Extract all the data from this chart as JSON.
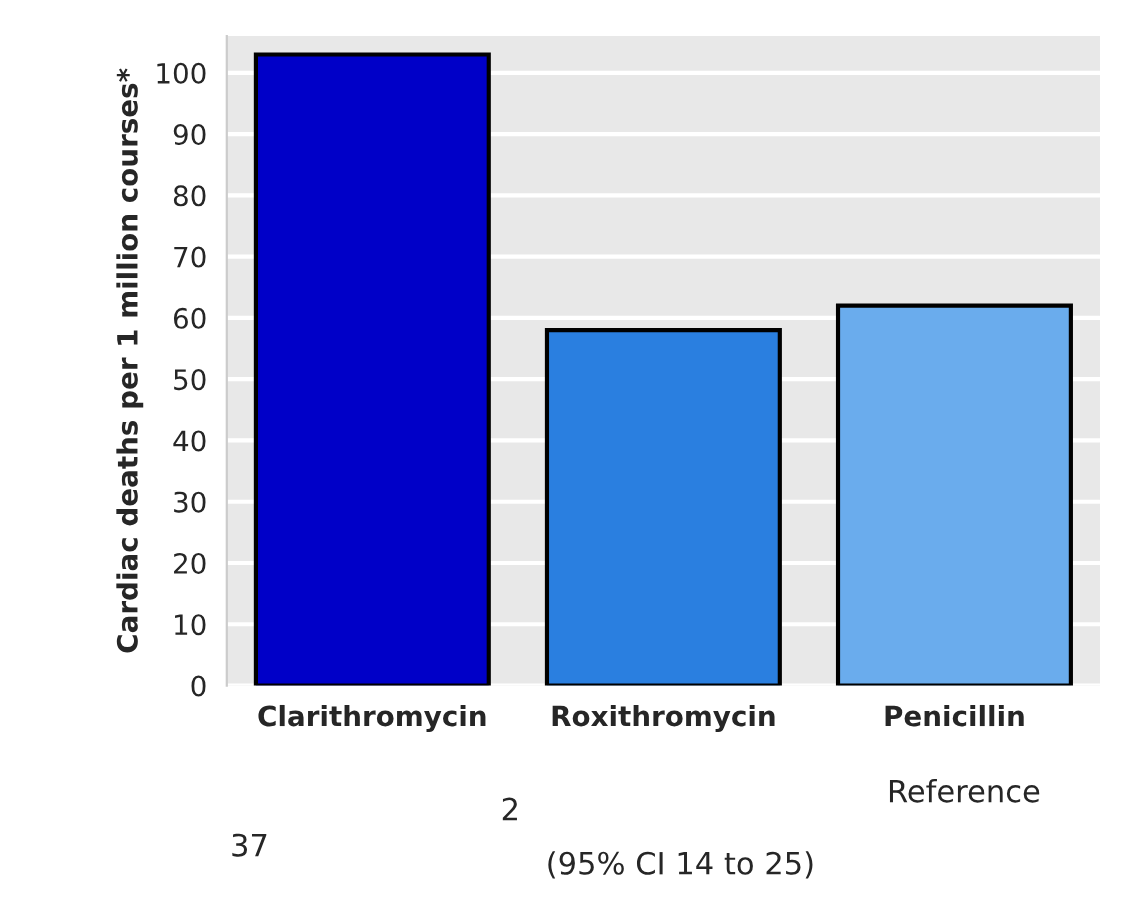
{
  "chart_data": {
    "type": "bar",
    "ylabel": "Cardiac deaths per 1 million courses*",
    "categories": [
      "Clarithromycin",
      "Roxithromycin",
      "Penicillin"
    ],
    "values": [
      103,
      58,
      62
    ],
    "colors": [
      "#0000c8",
      "#2a7fe0",
      "#6aaced"
    ],
    "ylim": [
      0,
      106
    ],
    "yticks": [
      0,
      10,
      20,
      30,
      40,
      50,
      60,
      70,
      80,
      90,
      100
    ],
    "grid": "y",
    "annotations": [
      "37",
      "2",
      "(95% CI 14 to 25)",
      "Reference"
    ]
  }
}
